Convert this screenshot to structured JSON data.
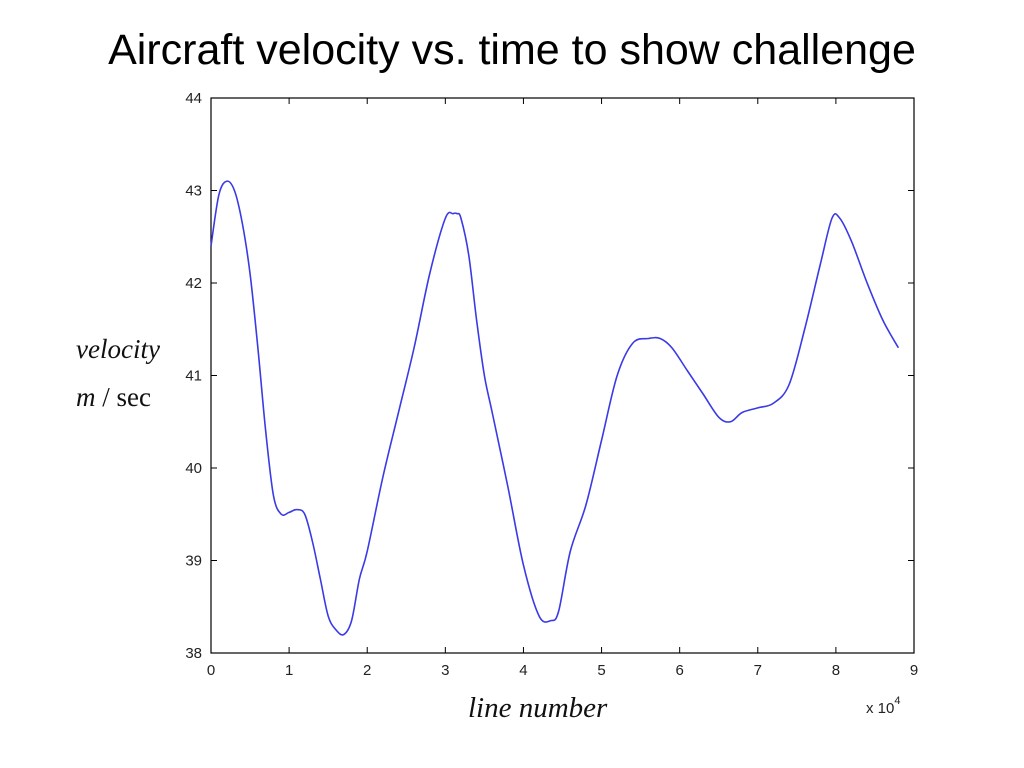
{
  "slide": {
    "title": "Aircraft velocity vs. time to show challenge"
  },
  "chart_data": {
    "type": "line",
    "title": "Aircraft velocity vs. time to show challenge",
    "xlabel": "line number",
    "ylabel_line1": "velocity",
    "ylabel_m": "m",
    "ylabel_sep": " / sec",
    "x_multiplier_base": "x 10",
    "x_multiplier_exp": "4",
    "xlim": [
      0,
      9
    ],
    "ylim": [
      38,
      44
    ],
    "xticks": [
      "0",
      "1",
      "2",
      "3",
      "4",
      "5",
      "6",
      "7",
      "8",
      "9"
    ],
    "yticks": [
      "38",
      "39",
      "40",
      "41",
      "42",
      "43",
      "44"
    ],
    "grid": false,
    "line_color": "#3a3ae6",
    "series": [
      {
        "x": [
          0.0,
          0.1,
          0.2,
          0.3,
          0.4,
          0.5,
          0.6,
          0.7,
          0.8,
          0.9,
          1.0,
          1.1,
          1.2,
          1.3,
          1.4,
          1.5,
          1.6,
          1.7,
          1.8,
          1.9,
          2.0,
          2.2,
          2.4,
          2.6,
          2.8,
          3.0,
          3.1,
          3.15,
          3.2,
          3.3,
          3.4,
          3.5,
          3.6,
          3.8,
          4.0,
          4.2,
          4.35,
          4.45,
          4.6,
          4.8,
          5.0,
          5.2,
          5.4,
          5.6,
          5.75,
          5.9,
          6.1,
          6.3,
          6.5,
          6.65,
          6.8,
          7.0,
          7.2,
          7.4,
          7.6,
          7.8,
          7.95,
          8.05,
          8.2,
          8.4,
          8.6,
          8.8
        ],
        "y": [
          42.4,
          42.95,
          43.1,
          43.0,
          42.65,
          42.1,
          41.3,
          40.4,
          39.7,
          39.5,
          39.52,
          39.55,
          39.5,
          39.2,
          38.8,
          38.4,
          38.25,
          38.2,
          38.35,
          38.8,
          39.1,
          39.9,
          40.6,
          41.3,
          42.1,
          42.7,
          42.75,
          42.75,
          42.7,
          42.3,
          41.6,
          41.0,
          40.6,
          39.8,
          38.95,
          38.4,
          38.35,
          38.45,
          39.1,
          39.6,
          40.3,
          41.0,
          41.35,
          41.4,
          41.4,
          41.3,
          41.05,
          40.8,
          40.55,
          40.5,
          40.6,
          40.65,
          40.7,
          40.9,
          41.5,
          42.2,
          42.7,
          42.7,
          42.45,
          42.0,
          41.6,
          41.3
        ]
      }
    ]
  }
}
